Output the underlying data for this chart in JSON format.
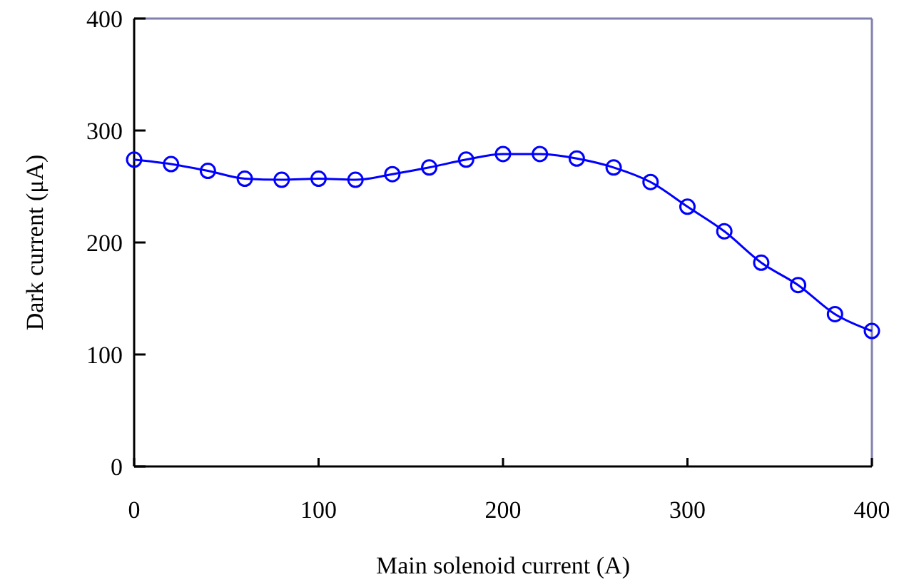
{
  "chart_data": {
    "type": "line",
    "xlabel": "Main solenoid current (A)",
    "ylabel": "Dark current (μA)",
    "x": [
      0,
      20,
      40,
      60,
      80,
      100,
      120,
      140,
      160,
      180,
      200,
      220,
      240,
      260,
      280,
      300,
      320,
      340,
      360,
      380,
      400
    ],
    "series": [
      {
        "color": "#0000ff",
        "values": [
          274,
          270,
          264,
          257,
          256,
          257,
          256,
          261,
          267,
          274,
          279,
          279,
          275,
          267,
          254,
          232,
          210,
          182,
          162,
          136,
          121
        ]
      }
    ],
    "xlim": [
      0,
      400
    ],
    "xticks": [
      0,
      100,
      200,
      300,
      400
    ],
    "ylim": [
      0,
      400
    ],
    "yticks": [
      0,
      100,
      200,
      300,
      400
    ],
    "marker": "circle",
    "line_style": "solid",
    "grid": false
  }
}
